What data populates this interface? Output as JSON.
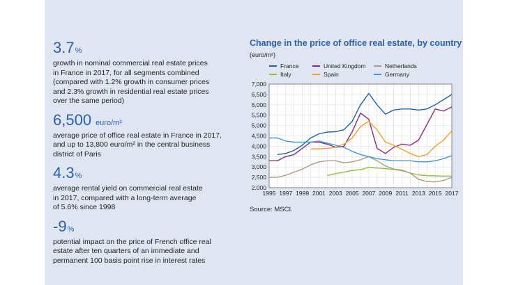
{
  "stats": [
    {
      "value": "3.7",
      "unit": "%",
      "desc": [
        "growth in nominal commercial real estate prices",
        "in France in 2017, for all segments combined",
        "(compared with 1.2% growth in consumer prices",
        "and 2.3% growth in residential real estate prices",
        "over the same period)"
      ]
    },
    {
      "value": "6,500",
      "unit": "euro/m²",
      "desc": [
        "average price of office real estate in France in 2017,",
        "and up to 13,800 euro/m² in the central business",
        "district of Paris"
      ]
    },
    {
      "value": "4.3",
      "unit": "%",
      "desc": [
        "average rental yield on commercial real estate",
        "in 2017, compared with a long-term average",
        "of 5.6% since 1998"
      ]
    },
    {
      "value": "-9",
      "unit": "%",
      "desc": [
        "potential impact on the price of French office real",
        "estate after ten quarters of an immediate and",
        "permanent 100 basis point rise in interest rates"
      ]
    }
  ],
  "chart_title": "Change in the price of office real estate, by country",
  "unit_label": "(euro/m²)",
  "source": "Source: MSCI.",
  "chart_data": {
    "type": "line",
    "title": "Change in the price of office real estate, by country",
    "ylabel": "(euro/m²)",
    "xlim": [
      1995,
      2017
    ],
    "ylim": [
      2000,
      7000
    ],
    "x_ticks": [
      1995,
      1997,
      1999,
      2001,
      2003,
      2005,
      2007,
      2009,
      2011,
      2013,
      2015,
      2017
    ],
    "y_ticks": [
      2000,
      2500,
      3000,
      3500,
      4000,
      4500,
      5000,
      5500,
      6000,
      6500,
      7000
    ],
    "y_tick_labels": [
      "2,000",
      "2,500",
      "3,000",
      "3,500",
      "4,000",
      "4,500",
      "5,000",
      "5,500",
      "6,000",
      "6,500",
      "7,000"
    ],
    "grid": true,
    "series": [
      {
        "name": "France",
        "color": "#1f5fa8",
        "x": [
          1996,
          1997,
          1998,
          1999,
          2000,
          2001,
          2002,
          2003,
          2004,
          2005,
          2006,
          2007,
          2008,
          2009,
          2010,
          2011,
          2012,
          2013,
          2014,
          2015,
          2016,
          2017
        ],
        "y": [
          3600,
          3650,
          3800,
          4050,
          4400,
          4600,
          4680,
          4700,
          4800,
          5200,
          6000,
          6550,
          6000,
          5550,
          5750,
          5800,
          5800,
          5750,
          5800,
          6000,
          6250,
          6500
        ]
      },
      {
        "name": "Italy",
        "color": "#8dbf3f",
        "x": [
          2002,
          2003,
          2004,
          2005,
          2006,
          2007,
          2008,
          2009,
          2010,
          2011,
          2012,
          2013,
          2014,
          2015,
          2016,
          2017
        ],
        "y": [
          2580,
          2680,
          2750,
          2830,
          2870,
          2980,
          2950,
          2920,
          2880,
          2820,
          2700,
          2620,
          2580,
          2570,
          2560,
          2560
        ]
      },
      {
        "name": "United Kingdom",
        "color": "#8b2a7b",
        "x": [
          1995,
          1996,
          1997,
          1998,
          1999,
          2000,
          2001,
          2002,
          2003,
          2004,
          2005,
          2006,
          2007,
          2008,
          2009,
          2010,
          2011,
          2012,
          2013,
          2014,
          2015,
          2016,
          2017
        ],
        "y": [
          3300,
          3300,
          3500,
          3600,
          3900,
          4200,
          4200,
          4100,
          3950,
          4000,
          4700,
          5600,
          5300,
          3900,
          3650,
          3950,
          4100,
          4050,
          4300,
          5050,
          5800,
          5700,
          5900
        ]
      },
      {
        "name": "Spain",
        "color": "#f0a02e",
        "x": [
          2000,
          2001,
          2002,
          2003,
          2004,
          2005,
          2006,
          2007,
          2008,
          2009,
          2010,
          2011,
          2012,
          2013,
          2014,
          2015,
          2016,
          2017
        ],
        "y": [
          3870,
          3880,
          3900,
          3950,
          4100,
          4400,
          4950,
          5200,
          4800,
          4200,
          4050,
          3850,
          3650,
          3500,
          3600,
          4000,
          4300,
          4750
        ]
      },
      {
        "name": "Netherlands",
        "color": "#b09a80",
        "x": [
          1995,
          1996,
          1997,
          1998,
          1999,
          2000,
          2001,
          2002,
          2003,
          2004,
          2005,
          2006,
          2007,
          2008,
          2009,
          2010,
          2011,
          2012,
          2013,
          2014,
          2015,
          2016,
          2017
        ],
        "y": [
          2500,
          2500,
          2600,
          2750,
          2900,
          3100,
          3250,
          3300,
          3300,
          3200,
          3250,
          3350,
          3500,
          3300,
          3050,
          2900,
          2850,
          2700,
          2400,
          2300,
          2280,
          2350,
          2500
        ]
      },
      {
        "name": "Germany",
        "color": "#4196d6",
        "x": [
          1995,
          1996,
          1997,
          1998,
          1999,
          2000,
          2001,
          2002,
          2003,
          2004,
          2005,
          2006,
          2007,
          2008,
          2009,
          2010,
          2011,
          2012,
          2013,
          2014,
          2015,
          2016,
          2017
        ],
        "y": [
          4400,
          4400,
          4250,
          4200,
          4200,
          4200,
          4250,
          4150,
          4050,
          3950,
          3750,
          3600,
          3500,
          3400,
          3350,
          3300,
          3300,
          3300,
          3250,
          3250,
          3300,
          3400,
          3550
        ]
      }
    ]
  }
}
